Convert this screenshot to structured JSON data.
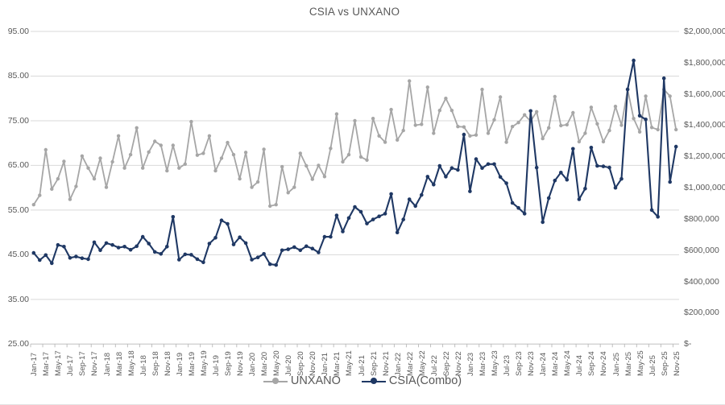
{
  "title": "CSIA vs UNXANO",
  "legend": [
    {
      "label": "UNXANO",
      "color": "#a6a6a6"
    },
    {
      "label": "CSIA(Combo)",
      "color": "#1f3864"
    }
  ],
  "chart_data": {
    "type": "line",
    "title": "CSIA vs UNXANO",
    "grid": true,
    "legend_position": "bottom",
    "categories": [
      "Jan-17",
      "Feb-17",
      "Mar-17",
      "Apr-17",
      "May-17",
      "Jun-17",
      "Jul-17",
      "Aug-17",
      "Sep-17",
      "Oct-17",
      "Nov-17",
      "Dec-17",
      "Jan-18",
      "Feb-18",
      "Mar-18",
      "Apr-18",
      "May-18",
      "Jun-18",
      "Jul-18",
      "Aug-18",
      "Sep-18",
      "Oct-18",
      "Nov-18",
      "Dec-18",
      "Jan-19",
      "Feb-19",
      "Mar-19",
      "Apr-19",
      "May-19",
      "Jun-19",
      "Jul-19",
      "Aug-19",
      "Sep-19",
      "Oct-19",
      "Nov-19",
      "Dec-19",
      "Jan-20",
      "Feb-20",
      "Mar-20",
      "Apr-20",
      "May-20",
      "Jun-20",
      "Jul-20",
      "Aug-20",
      "Sep-20",
      "Oct-20",
      "Nov-20",
      "Dec-20",
      "Jan-21",
      "Feb-21",
      "Mar-21",
      "Apr-21",
      "May-21",
      "Jun-21",
      "Jul-21",
      "Aug-21",
      "Sep-21",
      "Oct-21",
      "Nov-21",
      "Dec-21",
      "Jan-22",
      "Feb-22",
      "Mar-22",
      "Apr-22",
      "May-22",
      "Jun-22",
      "Jul-22",
      "Aug-22",
      "Sep-22",
      "Oct-22",
      "Nov-22",
      "Dec-22",
      "Jan-23",
      "Feb-23",
      "Mar-23",
      "Apr-23",
      "May-23",
      "Jun-23",
      "Jul-23",
      "Aug-23",
      "Sep-23",
      "Oct-23",
      "Nov-23",
      "Dec-23",
      "Jan-24",
      "Feb-24",
      "Mar-24",
      "Apr-24",
      "May-24",
      "Jun-24",
      "Jul-24",
      "Aug-24",
      "Sep-24",
      "Oct-24",
      "Nov-24",
      "Dec-24",
      "Jan-25",
      "Feb-25",
      "Mar-25",
      "Apr-25",
      "May-25",
      "Jun-25",
      "Jul-25",
      "Aug-25",
      "Sep-25",
      "Oct-25",
      "Nov-25"
    ],
    "x_tick_labels": [
      "Jan-17",
      "Mar-17",
      "May-17",
      "Jul-17",
      "Sep-17",
      "Nov-17",
      "Jan-18",
      "Mar-18",
      "May-18",
      "Jul-18",
      "Sep-18",
      "Nov-18",
      "Jan-19",
      "Mar-19",
      "May-19",
      "Jul-19",
      "Sep-19",
      "Nov-19",
      "Jan-20",
      "Mar-20",
      "May-20",
      "Jul-20",
      "Sep-20",
      "Nov-20",
      "Jan-21",
      "Mar-21",
      "May-21",
      "Jul-21",
      "Sep-21",
      "Nov-21",
      "Jan-22",
      "Mar-22",
      "May-22",
      "Jul-22",
      "Sep-22",
      "Nov-22",
      "Jan-23",
      "Mar-23",
      "May-23",
      "Jul-23",
      "Sep-23",
      "Nov-23",
      "Jan-24",
      "Mar-24",
      "May-24",
      "Jul-24",
      "Sep-24",
      "Nov-24",
      "Jan-25",
      "Mar-25",
      "May-25",
      "Jul-25",
      "Sep-25",
      "Nov-25"
    ],
    "y_left": {
      "min": 25,
      "max": 95,
      "ticks": [
        "95.00",
        "85.00",
        "75.00",
        "65.00",
        "55.00",
        "45.00",
        "35.00",
        "25.00"
      ]
    },
    "y_right": {
      "min": 0,
      "max": 2000000,
      "ticks": [
        "$2,000,000",
        "$1,800,000",
        "$1,600,000",
        "$1,400,000",
        "$1,200,000",
        "$1,000,000",
        "$800,000",
        "$600,000",
        "$400,000",
        "$200,000",
        "$-"
      ]
    },
    "series": [
      {
        "name": "UNXANO",
        "axis": "left",
        "color": "#a6a6a6",
        "values": [
          56.2,
          58.3,
          68.5,
          59.7,
          62.0,
          65.9,
          57.4,
          60.3,
          67.1,
          64.4,
          62.0,
          66.6,
          60.1,
          65.8,
          71.6,
          64.4,
          67.4,
          73.4,
          64.4,
          68.0,
          70.4,
          69.5,
          63.8,
          69.5,
          64.4,
          65.3,
          74.8,
          67.3,
          67.7,
          71.6,
          63.8,
          66.6,
          70.1,
          67.4,
          62.0,
          67.9,
          60.1,
          61.3,
          68.6,
          55.9,
          56.2,
          64.7,
          58.9,
          60.1,
          67.7,
          64.9,
          61.9,
          65.0,
          62.5,
          68.8,
          76.5,
          65.8,
          67.4,
          75.0,
          66.9,
          66.2,
          75.5,
          71.6,
          70.2,
          77.5,
          70.7,
          72.8,
          83.9,
          74.0,
          74.2,
          82.5,
          72.2,
          77.3,
          80.0,
          77.3,
          73.7,
          73.6,
          71.6,
          71.8,
          82.0,
          72.2,
          75.2,
          80.3,
          70.2,
          73.7,
          74.6,
          76.3,
          74.9,
          77.0,
          71.0,
          73.4,
          80.4,
          73.9,
          74.1,
          76.8,
          70.3,
          72.2,
          78.0,
          74.3,
          70.3,
          72.8,
          78.2,
          74.0,
          82.0,
          75.5,
          72.5,
          80.5,
          73.5,
          73.0,
          82.0,
          80.5,
          73.0
        ]
      },
      {
        "name": "CSIA(Combo)",
        "axis": "right",
        "color": "#1f3864",
        "values_usd": [
          583000,
          537000,
          569000,
          517000,
          634000,
          623000,
          551000,
          560000,
          549000,
          543000,
          651000,
          600000,
          646000,
          634000,
          617000,
          623000,
          603000,
          626000,
          686000,
          643000,
          589000,
          577000,
          623000,
          814000,
          540000,
          574000,
          571000,
          543000,
          523000,
          643000,
          680000,
          791000,
          769000,
          637000,
          683000,
          646000,
          540000,
          554000,
          577000,
          511000,
          506000,
          600000,
          606000,
          620000,
          600000,
          626000,
          611000,
          586000,
          686000,
          686000,
          823000,
          720000,
          806000,
          877000,
          846000,
          771000,
          797000,
          817000,
          834000,
          960000,
          714000,
          797000,
          926000,
          883000,
          954000,
          1071000,
          1020000,
          1140000,
          1071000,
          1126000,
          1114000,
          1340000,
          977000,
          1183000,
          1126000,
          1151000,
          1151000,
          1069000,
          1029000,
          903000,
          871000,
          834000,
          1491000,
          1129000,
          780000,
          934000,
          1046000,
          1097000,
          1051000,
          1249000,
          926000,
          994000,
          1257000,
          1140000,
          1137000,
          1129000,
          1000000,
          1057000,
          1629000,
          1814000,
          1460000,
          1437000,
          857000,
          814000,
          1700000,
          1037000,
          1263000
        ]
      }
    ]
  }
}
